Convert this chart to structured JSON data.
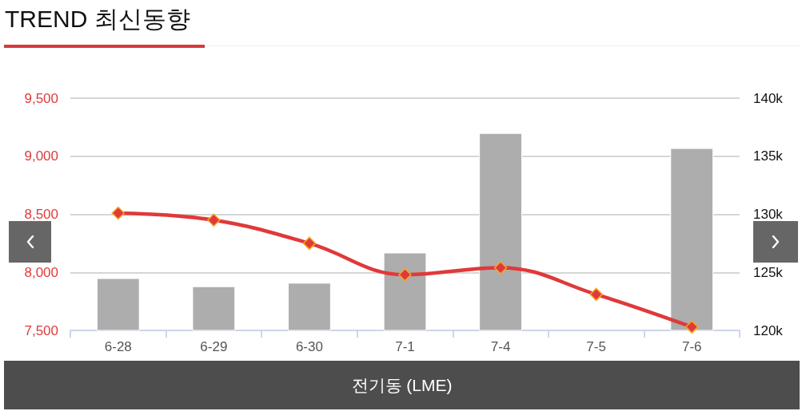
{
  "chart_data": {
    "type": "bar",
    "title": "TREND 최신동향",
    "xlabel": "전기동 (LME)",
    "categories": [
      "6-28",
      "6-29",
      "6-30",
      "7-1",
      "7-4",
      "7-5",
      "7-6"
    ],
    "series": [
      {
        "axis": "y2",
        "color": "#adadad",
        "values": [
          124500,
          123800,
          124100,
          126700,
          137000,
          null,
          135700
        ]
      },
      {
        "type": "line",
        "color": "#e0393a",
        "values": [
          8510,
          8450,
          8250,
          7980,
          8040,
          7810,
          7530
        ]
      }
    ],
    "ylim": [
      7500,
      9500
    ],
    "yticks": [
      {
        "value": 7500,
        "label": "7,500"
      },
      {
        "value": 8000,
        "label": "8,000"
      },
      {
        "value": 8500,
        "label": "8,500"
      },
      {
        "value": 9000,
        "label": "9,000"
      },
      {
        "value": 9500,
        "label": "9,500"
      }
    ],
    "y2lim": [
      120000,
      140000
    ],
    "y2ticks": [
      {
        "value": 120000,
        "label": "120k"
      },
      {
        "value": 125000,
        "label": "125k"
      },
      {
        "value": 130000,
        "label": "130k"
      },
      {
        "value": 135000,
        "label": "135k"
      },
      {
        "value": 140000,
        "label": "140k"
      }
    ],
    "grid": "y",
    "marker": "diamond",
    "line_style": "solid"
  }
}
